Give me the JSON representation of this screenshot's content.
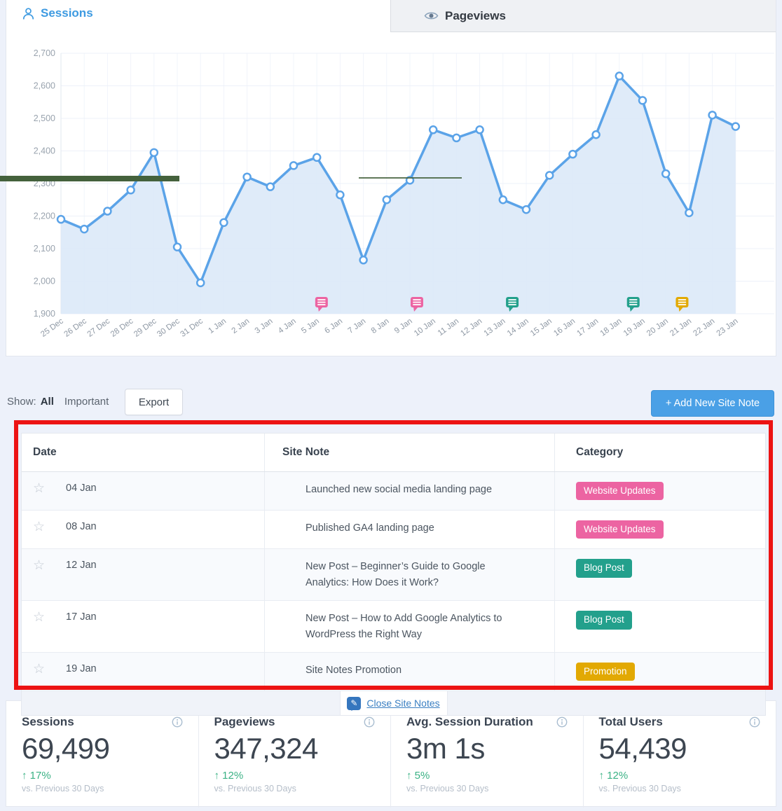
{
  "tabs": {
    "sessions": {
      "label": "Sessions"
    },
    "pageviews": {
      "label": "Pageviews"
    }
  },
  "chart_data": {
    "type": "line",
    "title": "",
    "categories": [
      "25 Dec",
      "26 Dec",
      "27 Dec",
      "28 Dec",
      "29 Dec",
      "30 Dec",
      "31 Dec",
      "1 Jan",
      "2 Jan",
      "3 Jan",
      "4 Jan",
      "5 Jan",
      "6 Jan",
      "7 Jan",
      "8 Jan",
      "9 Jan",
      "10 Jan",
      "11 Jan",
      "12 Jan",
      "13 Jan",
      "14 Jan",
      "15 Jan",
      "16 Jan",
      "17 Jan",
      "18 Jan",
      "19 Jan",
      "20 Jan",
      "21 Jan",
      "22 Jan",
      "23 Jan"
    ],
    "series": [
      {
        "name": "Sessions",
        "values": [
          2190,
          2160,
          2215,
          2280,
          2395,
          2105,
          1995,
          2180,
          2320,
          2290,
          2355,
          2380,
          2265,
          2065,
          2250,
          2310,
          2465,
          2440,
          2465,
          2250,
          2220,
          2325,
          2390,
          2450,
          2630,
          2555,
          2330,
          2210,
          2510,
          2475
        ]
      }
    ],
    "ylim": [
      1900,
      2700
    ],
    "ytick_step": 100,
    "grid": true,
    "legend": "none",
    "note_markers": [
      {
        "date": "04 Jan",
        "category": "Website Updates",
        "color": "pink",
        "x_index": 11.2
      },
      {
        "date": "08 Jan",
        "category": "Website Updates",
        "color": "pink",
        "x_index": 15.3
      },
      {
        "date": "12 Jan",
        "category": "Blog Post",
        "color": "teal",
        "x_index": 19.4
      },
      {
        "date": "17 Jan",
        "category": "Blog Post",
        "color": "teal",
        "x_index": 24.6
      },
      {
        "date": "19 Jan",
        "category": "Promotion",
        "color": "gold",
        "x_index": 26.7
      }
    ]
  },
  "toolbar": {
    "show_label": "Show:",
    "filter_all": "All",
    "filter_important": "Important",
    "export_label": "Export",
    "add_note_label": "+ Add New Site Note"
  },
  "table": {
    "columns": [
      "Date",
      "Site Note",
      "Category"
    ],
    "rows": [
      {
        "date": "04 Jan",
        "note": "Launched new social media landing page",
        "category": "Website Updates",
        "color": "pink"
      },
      {
        "date": "08 Jan",
        "note": "Published GA4 landing page",
        "category": "Website Updates",
        "color": "pink"
      },
      {
        "date": "12 Jan",
        "note": "New Post – Beginner’s Guide to Google Analytics: How Does it Work?",
        "category": "Blog Post",
        "color": "teal"
      },
      {
        "date": "17 Jan",
        "note": "New Post – How to Add Google Analytics to WordPress the Right Way",
        "category": "Blog Post",
        "color": "teal"
      },
      {
        "date": "19 Jan",
        "note": "Site Notes Promotion",
        "category": "Promotion",
        "color": "gold"
      }
    ],
    "footer_link": "Close Site Notes"
  },
  "stats": [
    {
      "title": "Sessions",
      "value": "69,499",
      "change": "17%",
      "direction": "up",
      "sub": "vs. Previous 30 Days"
    },
    {
      "title": "Pageviews",
      "value": "347,324",
      "change": "12%",
      "direction": "up",
      "sub": "vs. Previous 30 Days"
    },
    {
      "title": "Avg. Session Duration",
      "value": "3m 1s",
      "change": "5%",
      "direction": "up",
      "sub": "vs. Previous 30 Days"
    },
    {
      "title": "Total Users",
      "value": "54,439",
      "change": "12%",
      "direction": "up",
      "sub": "vs. Previous 30 Days"
    }
  ],
  "colors": {
    "accent_blue": "#3d9ae1",
    "button_blue": "#4aa0e6",
    "chart_line": "#5ba3e8",
    "chart_fill": "#dbe9f8",
    "badge_pink": "#ec64a2",
    "badge_teal": "#23a08c",
    "badge_gold": "#e2a903",
    "positive_green": "#3bb285",
    "annotation_red": "#ec1313",
    "annotation_green": "#44613c"
  }
}
